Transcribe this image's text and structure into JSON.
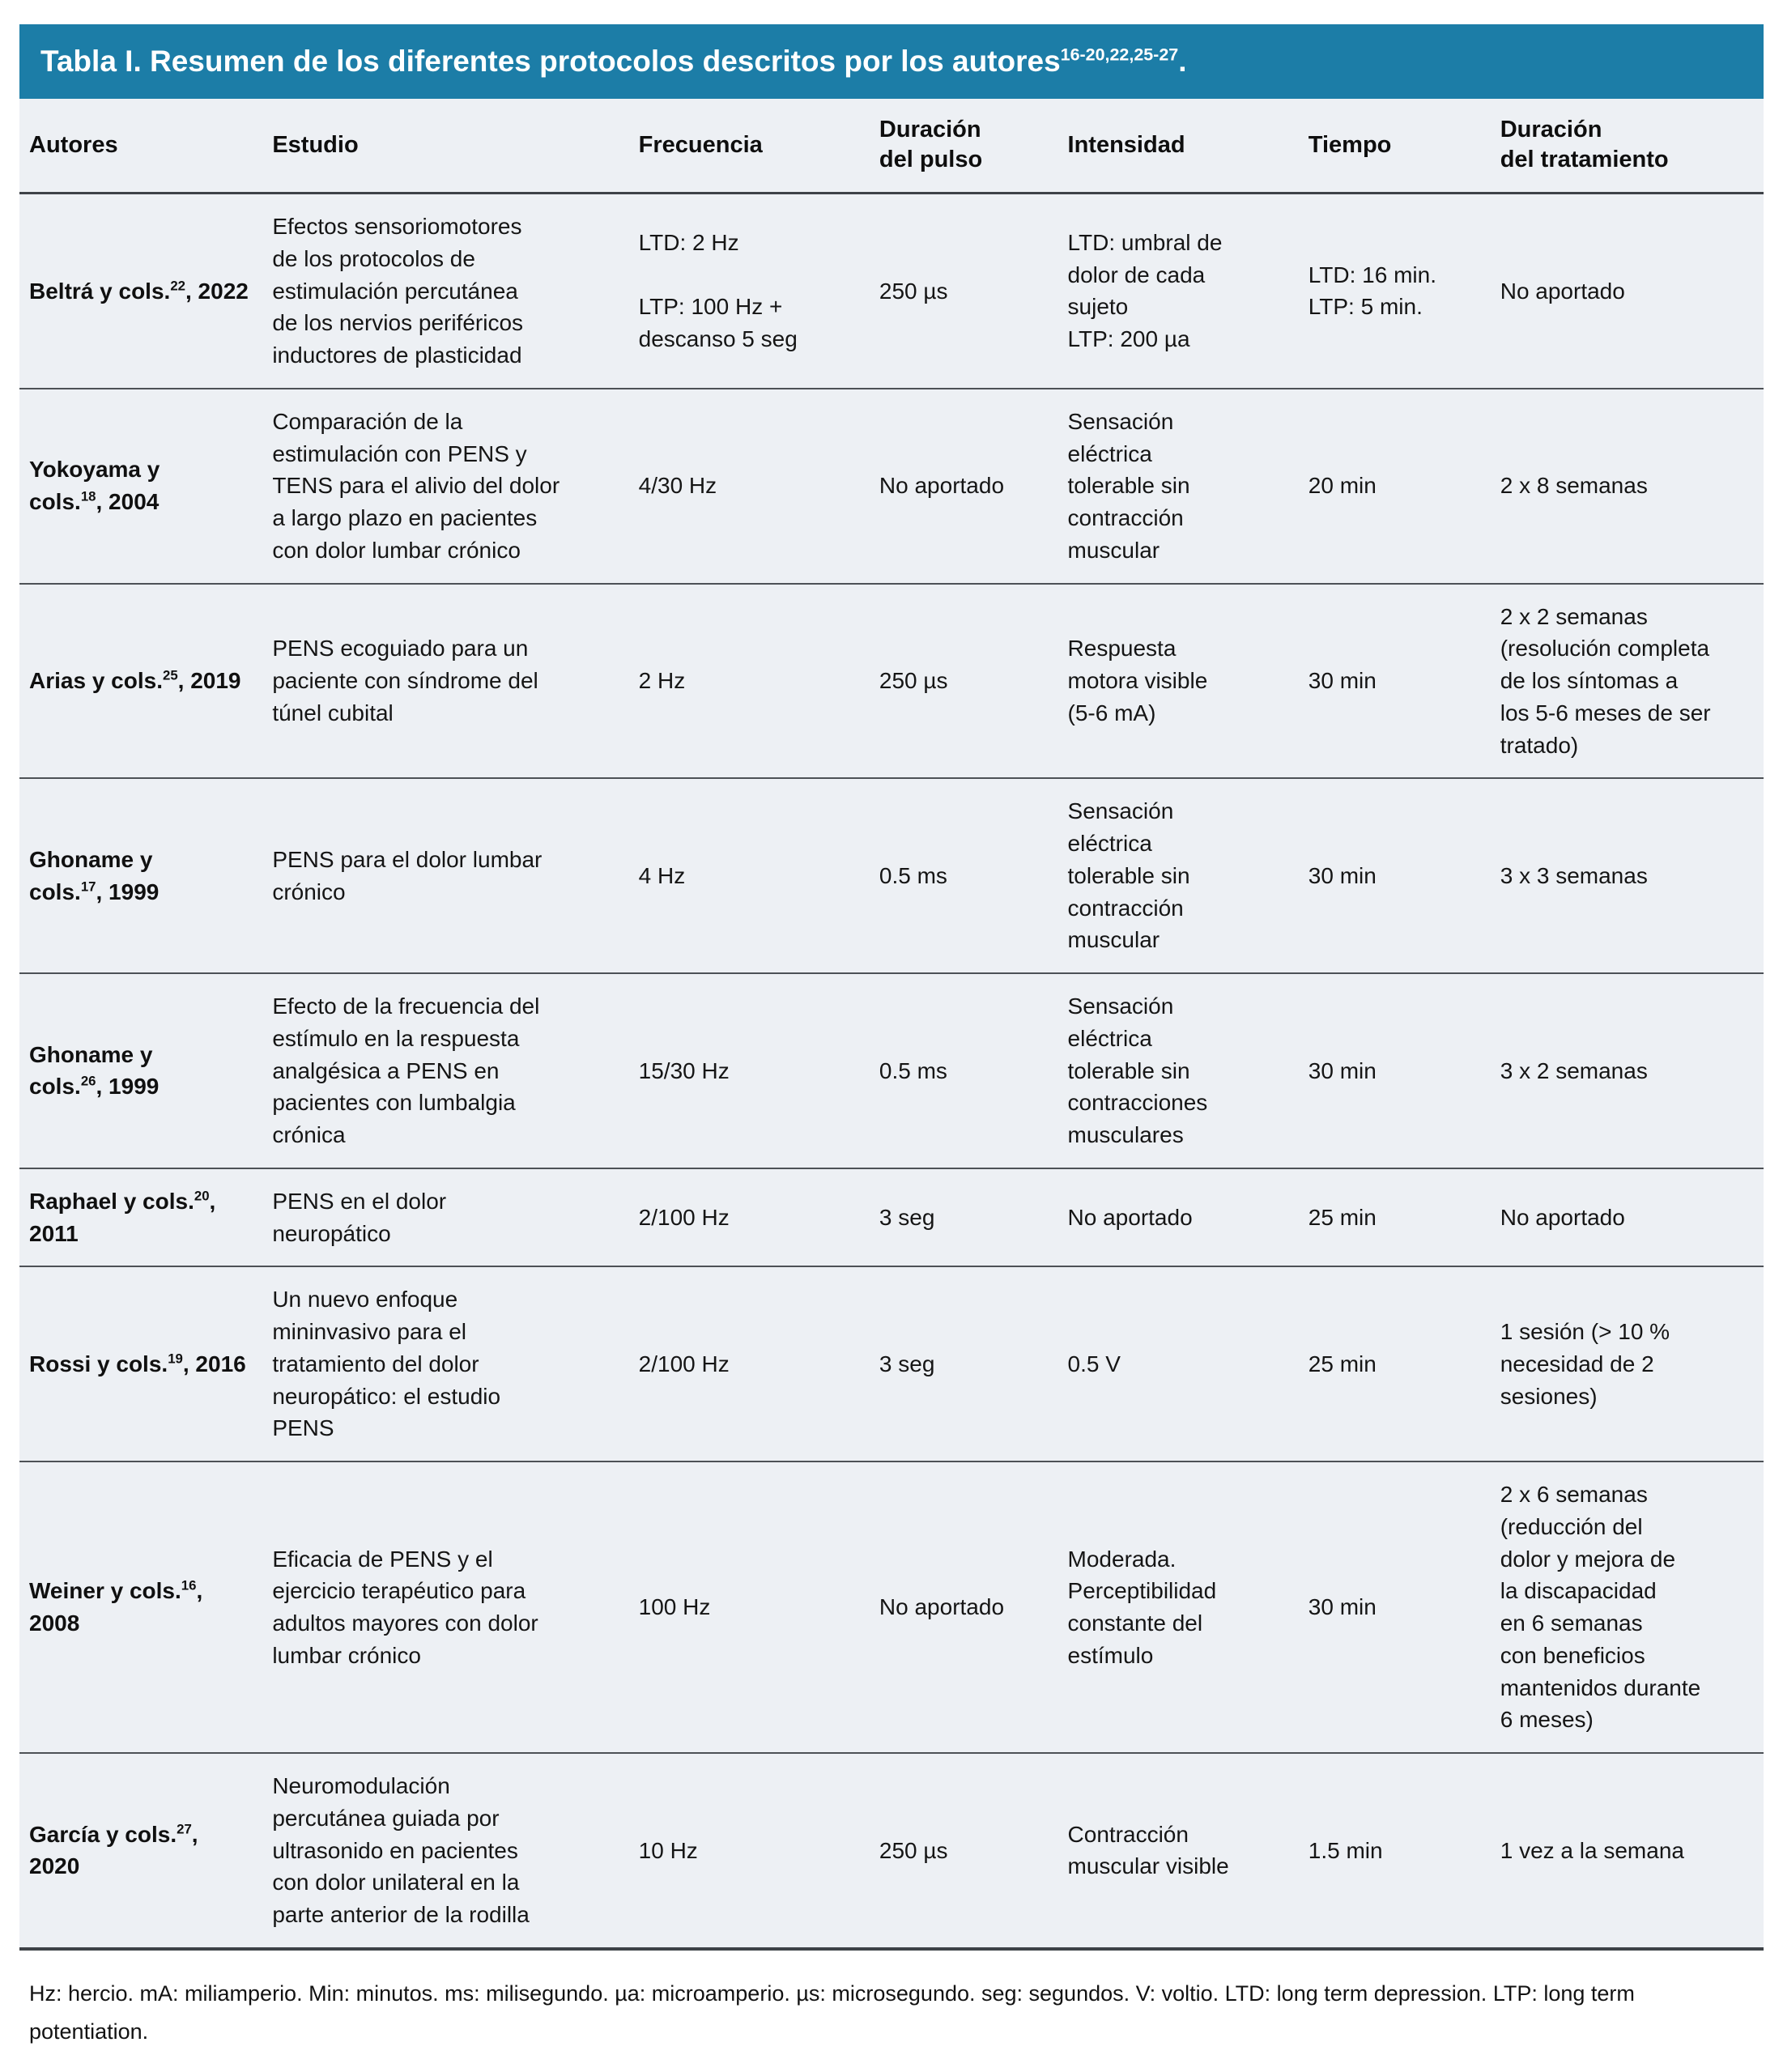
{
  "accent_color": "#1c7da7",
  "background_color": "#edf0f4",
  "table": {
    "title": {
      "text": "Tabla I. Resumen de los diferentes protocolos descritos por los autores",
      "superscript": "16-20,22,25-27",
      "suffix": "."
    },
    "columns": [
      "Autores",
      "Estudio",
      "Frecuencia",
      "Duración\ndel pulso",
      "Intensidad",
      "Tiempo",
      "Duración\ndel tratamiento"
    ],
    "rows": [
      {
        "author": {
          "name": "Beltrá y cols.",
          "ref": "22",
          "year": "2022"
        },
        "estudio": "Efectos sensoriomotores\nde los protocolos de\nestimulación percutánea\nde los nervios periféricos\ninductores de plasticidad",
        "frecuencia": "LTD: 2 Hz\n\nLTP: 100 Hz +\ndescanso 5 seg",
        "duracion_pulso": "250 µs",
        "intensidad": "LTD: umbral de\ndolor de cada\nsujeto\nLTP: 200 µa",
        "tiempo": "LTD: 16 min.\nLTP: 5 min.",
        "duracion_tratamiento": "No aportado"
      },
      {
        "author": {
          "name": "Yokoyama y\ncols.",
          "ref": "18",
          "year": "2004"
        },
        "estudio": "Comparación de la\nestimulación con PENS y\nTENS para el alivio del dolor\na largo plazo en pacientes\ncon dolor lumbar crónico",
        "frecuencia": "4/30 Hz",
        "duracion_pulso": "No aportado",
        "intensidad": "Sensación\neléctrica\ntolerable sin\ncontracción\nmuscular",
        "tiempo": "20 min",
        "duracion_tratamiento": "2 x 8 semanas"
      },
      {
        "author": {
          "name": "Arias y cols.",
          "ref": "25",
          "year": "2019"
        },
        "estudio": "PENS ecoguiado para un\npaciente con síndrome del\ntúnel cubital",
        "frecuencia": "2 Hz",
        "duracion_pulso": "250 µs",
        "intensidad": "Respuesta\nmotora visible\n(5-6 mA)",
        "tiempo": "30 min",
        "duracion_tratamiento": "2 x 2 semanas\n(resolución completa\nde los síntomas a\nlos 5-6 meses de ser\ntratado)"
      },
      {
        "author": {
          "name": "Ghoname y\ncols.",
          "ref": "17",
          "year": "1999"
        },
        "estudio": "PENS para el dolor lumbar\ncrónico",
        "frecuencia": "4 Hz",
        "duracion_pulso": "0.5 ms",
        "intensidad": "Sensación\neléctrica\ntolerable sin\ncontracción\nmuscular",
        "tiempo": "30 min",
        "duracion_tratamiento": "3 x 3 semanas"
      },
      {
        "author": {
          "name": "Ghoname y\ncols.",
          "ref": "26",
          "year": "1999"
        },
        "estudio": "Efecto de la frecuencia del\nestímulo en la respuesta\nanalgésica a PENS en\npacientes con lumbalgia\ncrónica",
        "frecuencia": "15/30 Hz",
        "duracion_pulso": "0.5 ms",
        "intensidad": "Sensación\neléctrica\ntolerable sin\ncontracciones\nmusculares",
        "tiempo": "30 min",
        "duracion_tratamiento": "3 x 2 semanas"
      },
      {
        "author": {
          "name": "Raphael y cols.",
          "ref": "20",
          "year": "2011"
        },
        "estudio": "PENS en el dolor\nneuropático",
        "frecuencia": "2/100 Hz",
        "duracion_pulso": "3 seg",
        "intensidad": "No aportado",
        "tiempo": "25 min",
        "duracion_tratamiento": "No aportado"
      },
      {
        "author": {
          "name": "Rossi y cols.",
          "ref": "19",
          "year": "2016"
        },
        "estudio": "Un nuevo enfoque\nmininvasivo para el\ntratamiento del dolor\nneuropático: el estudio\nPENS",
        "frecuencia": "2/100 Hz",
        "duracion_pulso": "3 seg",
        "intensidad": "0.5 V",
        "tiempo": "25 min",
        "duracion_tratamiento": "1 sesión (> 10 %\nnecesidad de 2\nsesiones)"
      },
      {
        "author": {
          "name": "Weiner y cols.",
          "ref": "16",
          "year": "2008"
        },
        "estudio": "Eficacia de PENS y el\nejercicio terapéutico para\nadultos mayores con dolor\nlumbar crónico",
        "frecuencia": "100 Hz",
        "duracion_pulso": "No aportado",
        "intensidad": "Moderada.\nPerceptibilidad\nconstante del\nestímulo",
        "tiempo": "30 min",
        "duracion_tratamiento": "2 x 6 semanas\n(reducción del\ndolor y mejora de\nla discapacidad\nen 6 semanas\ncon beneficios\nmantenidos durante\n6 meses)"
      },
      {
        "author": {
          "name": "García y cols.",
          "ref": "27",
          "year": "2020"
        },
        "estudio": "Neuromodulación\npercutánea guiada por\nultrasonido en pacientes\ncon dolor unilateral en la\nparte anterior de la rodilla",
        "frecuencia": "10 Hz",
        "duracion_pulso": "250 µs",
        "intensidad": "Contracción\nmuscular visible",
        "tiempo": "1.5 min",
        "duracion_tratamiento": "1 vez a la semana"
      }
    ],
    "footnote": "Hz: hercio. mA: miliamperio. Min: minutos. ms: milisegundo. µa: microamperio. µs: microsegundo. seg: segundos. V: voltio. LTD: long term depression. LTP: long term potentiation."
  }
}
